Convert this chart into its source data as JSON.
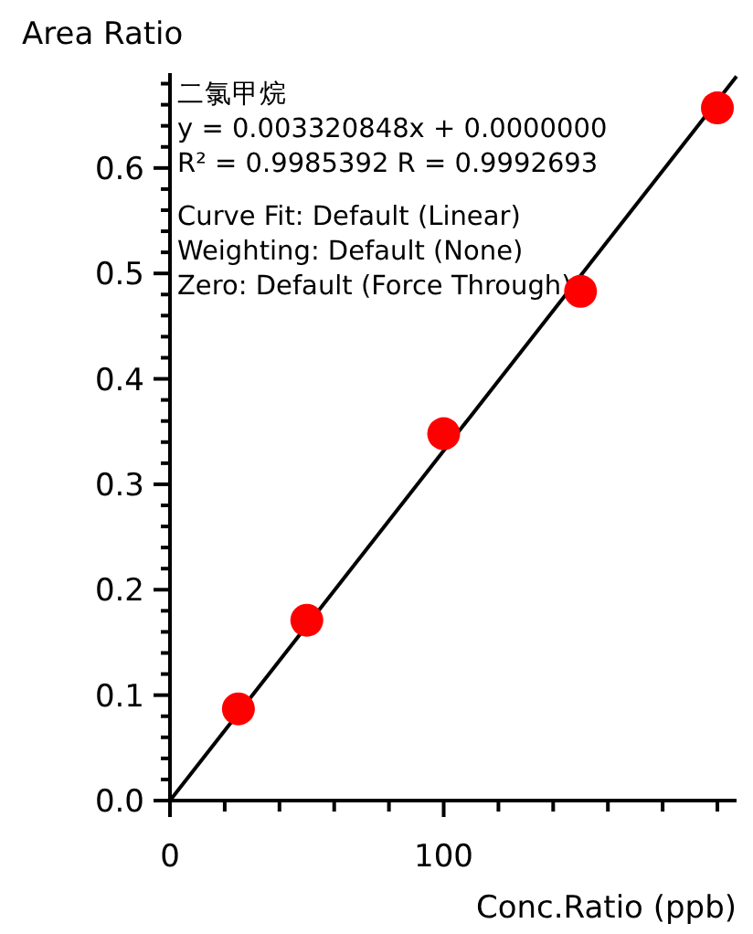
{
  "chart_data": {
    "type": "scatter",
    "ylabel": "Area Ratio",
    "xlabel": "Conc.Ratio (ppb)",
    "annotations": [
      "二氯甲烷",
      "y = 0.003320848x + 0.0000000",
      "R² = 0.9985392    R = 0.9992693",
      "Curve Fit: Default (Linear)",
      "Weighting: Default (None)",
      "Zero: Default (Force Through)"
    ],
    "xlim": [
      0,
      207
    ],
    "ylim": [
      0,
      0.69
    ],
    "xticks": [
      0,
      {
        "value": 20,
        "label": null
      },
      {
        "value": 40,
        "label": null
      },
      {
        "value": 60,
        "label": null
      },
      {
        "value": 80,
        "label": null
      },
      100,
      {
        "value": 120,
        "label": null
      },
      {
        "value": 140,
        "label": null
      },
      {
        "value": 160,
        "label": null
      },
      {
        "value": 180,
        "label": null
      },
      {
        "value": 200,
        "label": null
      }
    ],
    "yticks": [
      {
        "value": 0,
        "label": "0.0"
      },
      {
        "value": 0.02,
        "label": null
      },
      {
        "value": 0.04,
        "label": null
      },
      {
        "value": 0.06,
        "label": null
      },
      {
        "value": 0.08,
        "label": null
      },
      {
        "value": 0.1,
        "label": "0.1"
      },
      {
        "value": 0.12,
        "label": null
      },
      {
        "value": 0.14,
        "label": null
      },
      {
        "value": 0.16,
        "label": null
      },
      {
        "value": 0.18,
        "label": null
      },
      {
        "value": 0.2,
        "label": "0.2"
      },
      {
        "value": 0.22,
        "label": null
      },
      {
        "value": 0.24,
        "label": null
      },
      {
        "value": 0.26,
        "label": null
      },
      {
        "value": 0.28,
        "label": null
      },
      {
        "value": 0.3,
        "label": "0.3"
      },
      {
        "value": 0.32,
        "label": null
      },
      {
        "value": 0.34,
        "label": null
      },
      {
        "value": 0.36,
        "label": null
      },
      {
        "value": 0.38,
        "label": null
      },
      {
        "value": 0.4,
        "label": "0.4"
      },
      {
        "value": 0.42,
        "label": null
      },
      {
        "value": 0.44,
        "label": null
      },
      {
        "value": 0.46,
        "label": null
      },
      {
        "value": 0.48,
        "label": null
      },
      {
        "value": 0.5,
        "label": "0.5"
      },
      {
        "value": 0.52,
        "label": null
      },
      {
        "value": 0.54,
        "label": null
      },
      {
        "value": 0.56,
        "label": null
      },
      {
        "value": 0.58,
        "label": null
      },
      {
        "value": 0.6,
        "label": "0.6"
      },
      {
        "value": 0.62,
        "label": null
      },
      {
        "value": 0.64,
        "label": null
      },
      {
        "value": 0.66,
        "label": null
      },
      {
        "value": 0.68,
        "label": null
      }
    ],
    "series": [
      {
        "type": "line",
        "color": "#000000",
        "x": [
          0,
          207
        ],
        "values": [
          0,
          0.687
        ],
        "marker": "none"
      },
      {
        "color": "#ff0000",
        "x": [
          25,
          50,
          100,
          150,
          200
        ],
        "values": [
          0.087,
          0.171,
          0.348,
          0.483,
          0.657
        ],
        "marker": "circle"
      }
    ]
  }
}
